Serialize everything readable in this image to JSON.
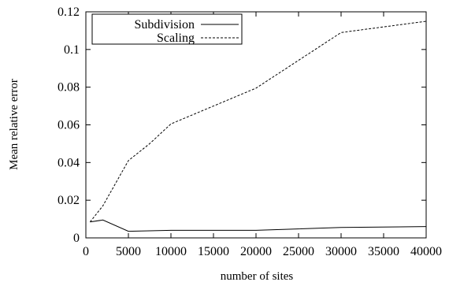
{
  "chart_data": {
    "type": "line",
    "title": "",
    "xlabel": "number of sites",
    "ylabel": "Mean relative error",
    "xlim": [
      0,
      40000
    ],
    "ylim": [
      0,
      0.12
    ],
    "x_ticks": [
      0,
      5000,
      10000,
      15000,
      20000,
      25000,
      30000,
      35000,
      40000
    ],
    "x_tick_labels": [
      "0",
      "5000",
      "10000",
      "15000",
      "20000",
      "25000",
      "30000",
      "35000",
      "40000"
    ],
    "y_ticks": [
      0,
      0.02,
      0.04,
      0.06,
      0.08,
      0.1,
      0.12
    ],
    "y_tick_labels": [
      "0",
      "0.02",
      "0.04",
      "0.06",
      "0.08",
      "0.1",
      "0.12"
    ],
    "grid": false,
    "legend_position": "top-left",
    "series": [
      {
        "name": "Subdivision",
        "style": "solid",
        "color": "#000000",
        "x": [
          500,
          2000,
          5000,
          10000,
          20000,
          30000,
          40000
        ],
        "y": [
          0.0085,
          0.0095,
          0.0035,
          0.004,
          0.004,
          0.0055,
          0.006
        ]
      },
      {
        "name": "Scaling",
        "style": "dashed",
        "color": "#000000",
        "x": [
          500,
          2000,
          5000,
          7500,
          10000,
          20000,
          30000,
          40000
        ],
        "y": [
          0.0085,
          0.017,
          0.041,
          0.05,
          0.0605,
          0.0795,
          0.109,
          0.115
        ]
      }
    ]
  }
}
